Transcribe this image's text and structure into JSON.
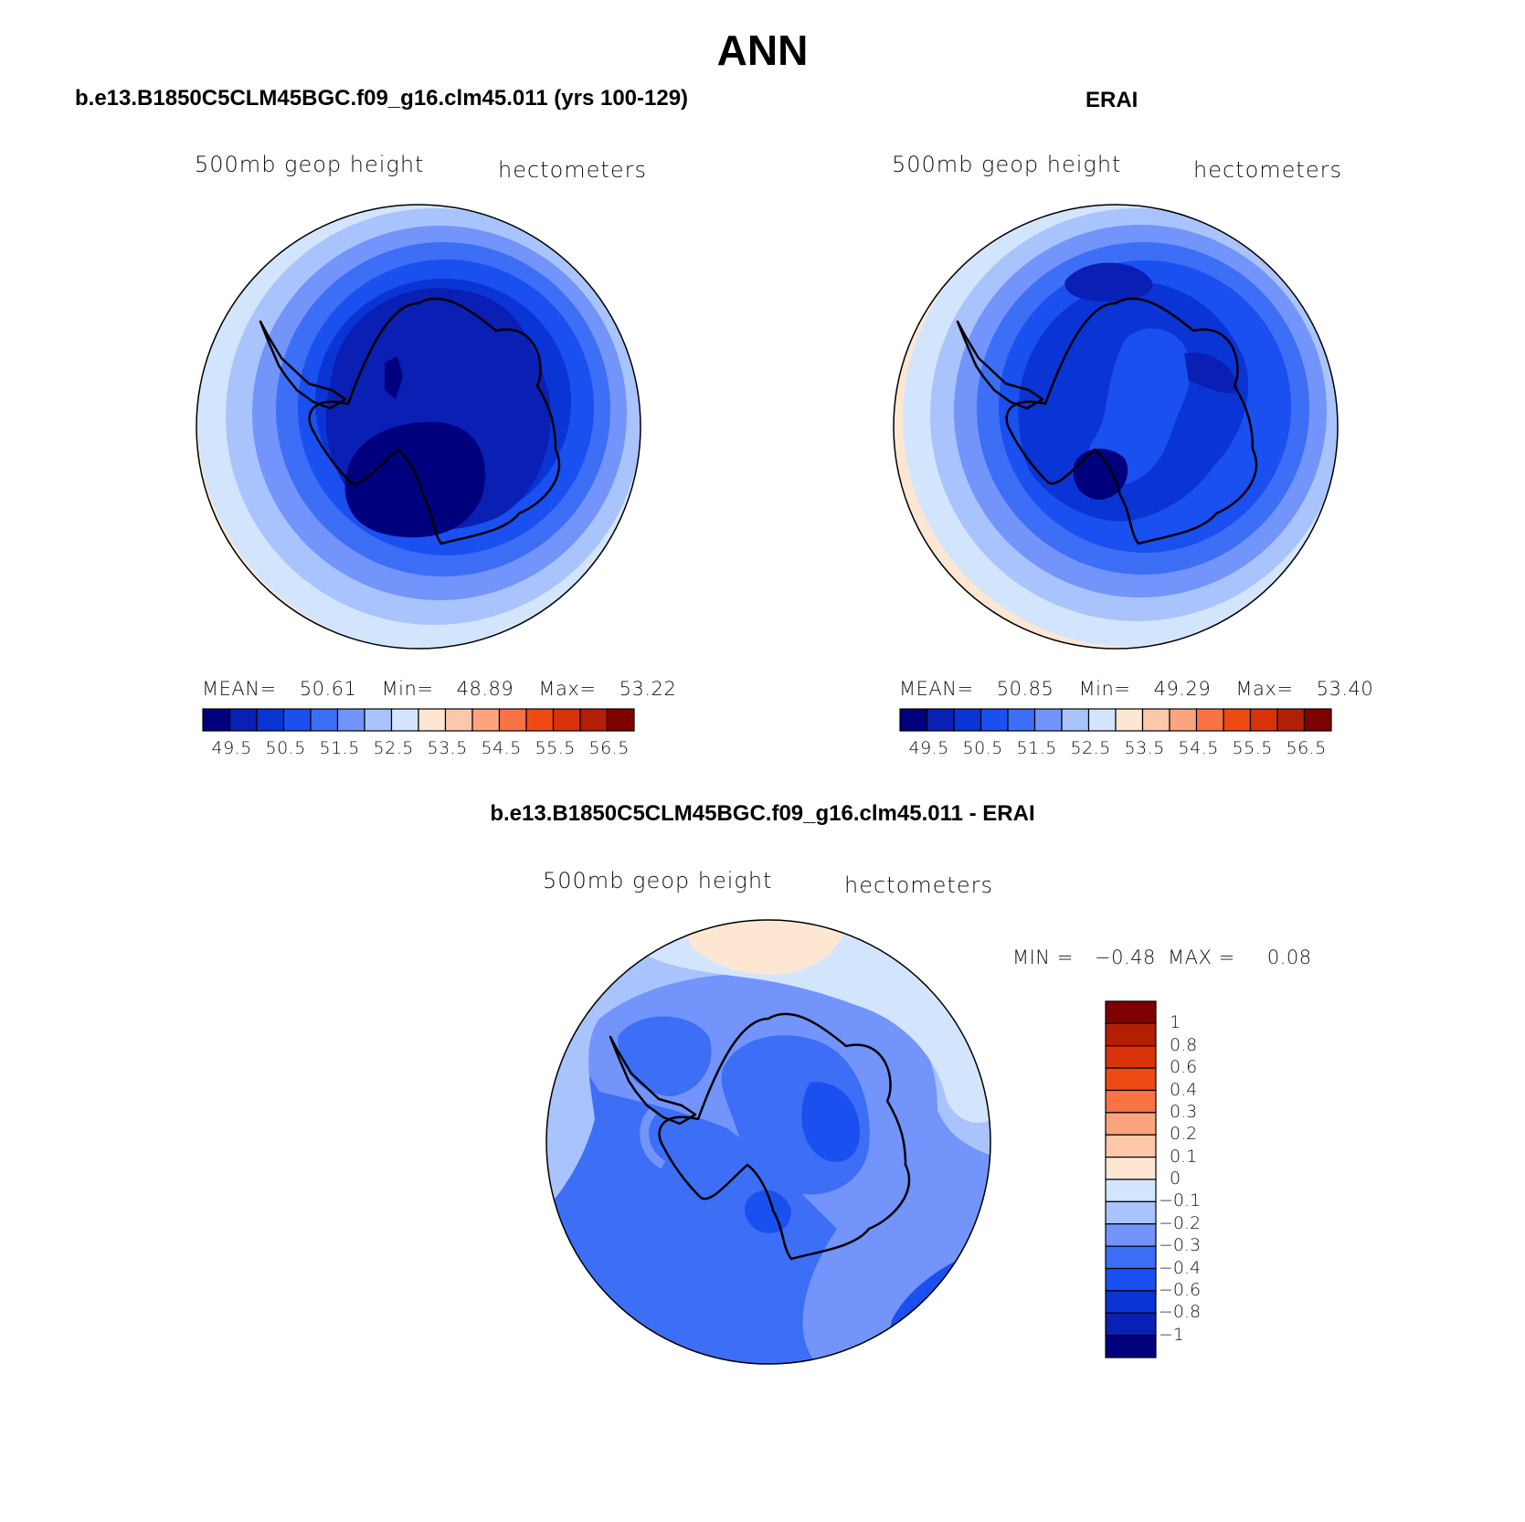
{
  "title": "ANN",
  "colors": {
    "abs_scale": [
      "#00007e",
      "#0a1fb3",
      "#0b34d5",
      "#1a4ff0",
      "#3d6ef6",
      "#7294fb",
      "#a9c3fd",
      "#d3e5fd",
      "#fde7d3",
      "#fdc7aa",
      "#fca47e",
      "#fa7345",
      "#ee4b14",
      "#d8330a",
      "#b31f05",
      "#7f0000"
    ],
    "diff_scale": [
      "#7f0000",
      "#b31f05",
      "#d8330a",
      "#ee4b14",
      "#fa7345",
      "#fca47e",
      "#fdc7aa",
      "#fde7d3",
      "#d3e5fd",
      "#a9c3fd",
      "#7294fb",
      "#3d6ef6",
      "#1a4ff0",
      "#0b34d5",
      "#0a1fb3",
      "#00007e"
    ]
  },
  "panels": {
    "model": {
      "title": "b.e13.B1850C5CLM45BGC.f09_g16.clm45.011 (yrs 100-129)",
      "left_label": "500mb geop height",
      "right_label": "hectometers",
      "stats": {
        "mean_label": "MEAN=",
        "mean": "50.61",
        "min_label": "Min=",
        "min": "48.89",
        "max_label": "Max=",
        "max": "53.22"
      },
      "colorbar_labels": [
        "49.5",
        "50.5",
        "51.5",
        "52.5",
        "53.5",
        "54.5",
        "55.5",
        "56.5"
      ]
    },
    "obs": {
      "title": "ERAI",
      "left_label": "500mb geop height",
      "right_label": "hectometers",
      "stats": {
        "mean_label": "MEAN=",
        "mean": "50.85",
        "min_label": "Min=",
        "min": "49.29",
        "max_label": "Max=",
        "max": "53.40"
      },
      "colorbar_labels": [
        "49.5",
        "50.5",
        "51.5",
        "52.5",
        "53.5",
        "54.5",
        "55.5",
        "56.5"
      ]
    },
    "diff": {
      "title": "b.e13.B1850C5CLM45BGC.f09_g16.clm45.011 - ERAI",
      "left_label": "500mb geop height",
      "right_label": "hectometers",
      "stats": {
        "min_label": "MIN =",
        "min": "−0.48",
        "max_label": "MAX =",
        "max": "0.08"
      },
      "colorbar_labels": [
        "1",
        "0.8",
        "0.6",
        "0.4",
        "0.3",
        "0.2",
        "0.1",
        "0",
        "−0.1",
        "−0.2",
        "−0.3",
        "−0.4",
        "−0.6",
        "−0.8",
        "−1"
      ]
    }
  }
}
